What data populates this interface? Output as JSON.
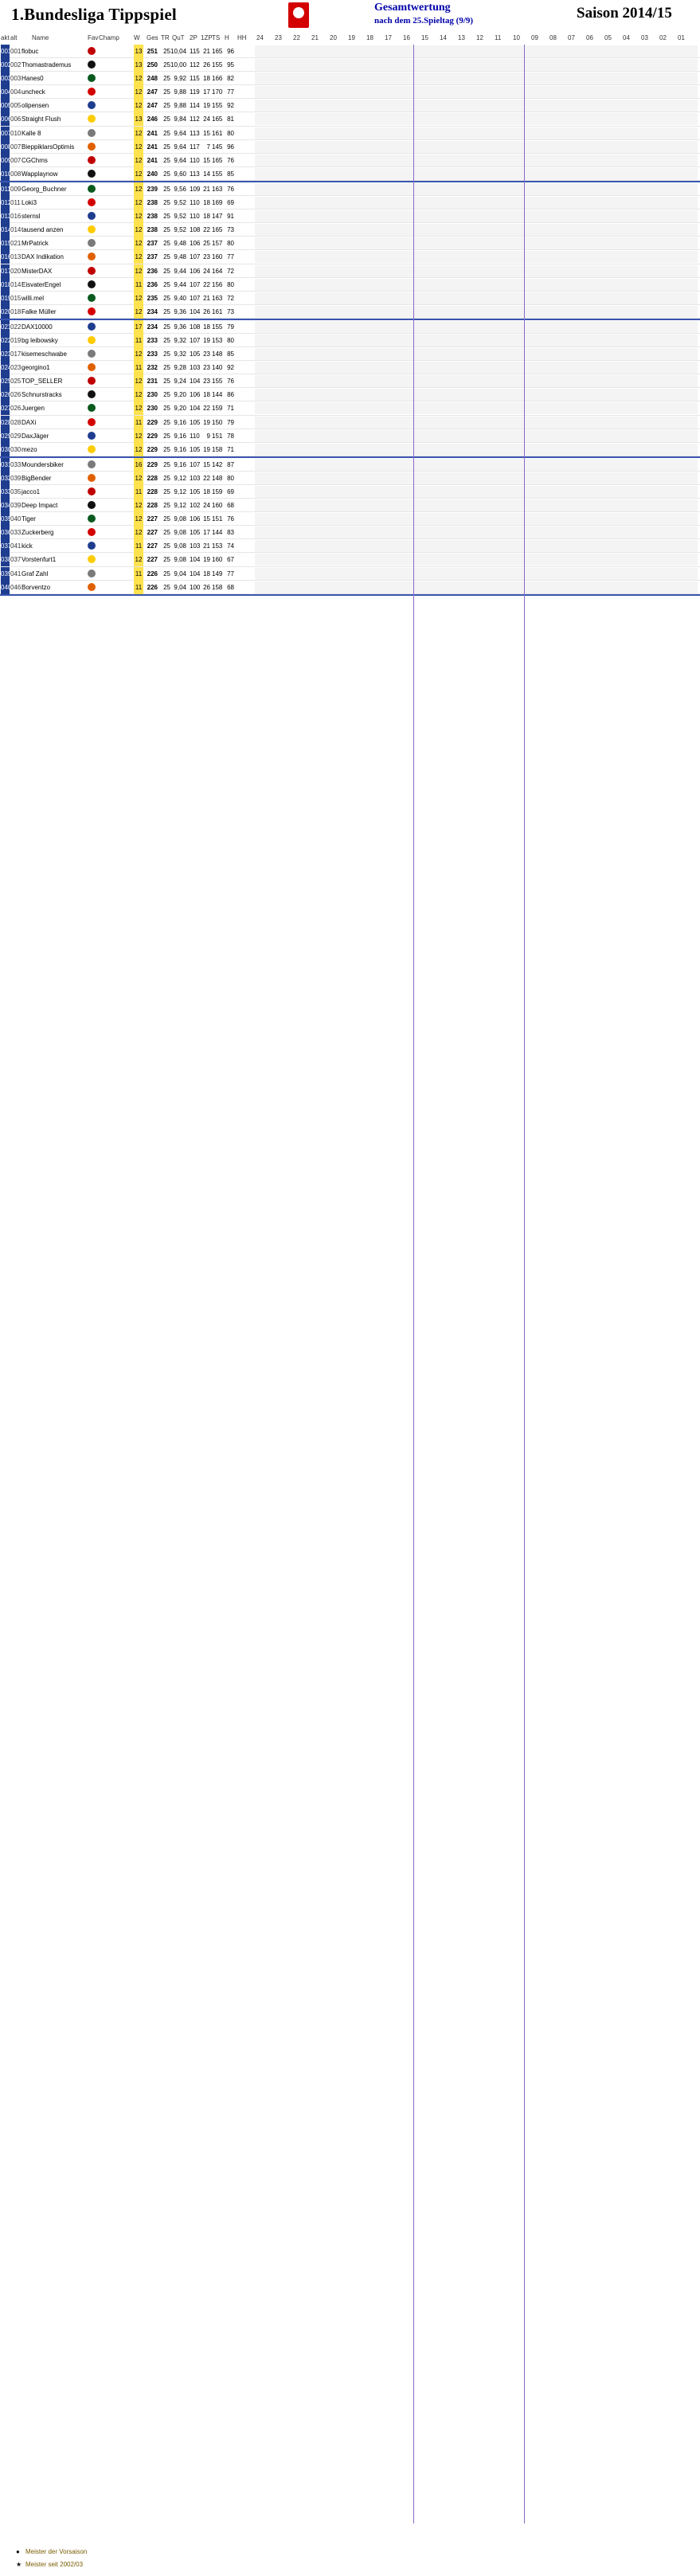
{
  "header": {
    "title": "1.Bundesliga Tippspiel",
    "subtitle": "Gesamtwertung",
    "subsubtitle": "nach dem 25.Spieltag (9/9)",
    "season": "Saison 2014/15"
  },
  "columns": [
    "akt",
    "alt",
    "Name",
    "Fav",
    "Champ",
    "W",
    "Ges",
    "TR",
    "QuT",
    "2P",
    "1ZP",
    "TS",
    "H",
    "HH",
    "24",
    "23",
    "22",
    "21",
    "20",
    "19",
    "18",
    "17",
    "16",
    "15",
    "14",
    "13",
    "12",
    "11",
    "10",
    "09",
    "08",
    "07",
    "06",
    "05",
    "04",
    "03",
    "02",
    "01"
  ],
  "rows": [
    {
      "rank": "001",
      "prev": "001",
      "name": "flobuc",
      "wins": "13",
      "ges": "251",
      "tr": "25",
      "qt": "10,04",
      "p2": "115",
      "p1": "21",
      "ts": "165",
      "h": "96",
      "hh": ""
    },
    {
      "rank": "002",
      "prev": "002",
      "name": "Thomastrademus",
      "wins": "13",
      "ges": "250",
      "tr": "25",
      "qt": "10,00",
      "p2": "112",
      "p1": "26",
      "ts": "155",
      "h": "95",
      "hh": ""
    },
    {
      "rank": "003",
      "prev": "003",
      "name": "Hanes0",
      "wins": "12",
      "ges": "248",
      "tr": "25",
      "qt": "9,92",
      "p2": "115",
      "p1": "18",
      "ts": "166",
      "h": "82",
      "hh": ""
    },
    {
      "rank": "004",
      "prev": "004",
      "name": "uncheck",
      "wins": "12",
      "ges": "247",
      "tr": "25",
      "qt": "9,88",
      "p2": "119",
      "p1": "17",
      "ts": "170",
      "h": "77",
      "hh": ""
    },
    {
      "rank": "005",
      "prev": "005",
      "name": "olipensen",
      "wins": "12",
      "ges": "247",
      "tr": "25",
      "qt": "9,88",
      "p2": "114",
      "p1": "19",
      "ts": "155",
      "h": "92",
      "hh": ""
    },
    {
      "rank": "006",
      "prev": "006",
      "name": "Straight Flush",
      "wins": "13",
      "ges": "246",
      "tr": "25",
      "qt": "9,84",
      "p2": "112",
      "p1": "24",
      "ts": "165",
      "h": "81",
      "hh": ""
    },
    {
      "rank": "007",
      "prev": "010",
      "name": "Kalle 8",
      "wins": "12",
      "ges": "241",
      "tr": "25",
      "qt": "9,64",
      "p2": "113",
      "p1": "15",
      "ts": "161",
      "h": "80",
      "hh": ""
    },
    {
      "rank": "008",
      "prev": "007",
      "name": "BieppiklarsOptimist",
      "wins": "12",
      "ges": "241",
      "tr": "25",
      "qt": "9,64",
      "p2": "117",
      "p1": "7",
      "ts": "145",
      "h": "96",
      "hh": ""
    },
    {
      "rank": "009",
      "prev": "007",
      "name": "CGChms",
      "wins": "12",
      "ges": "241",
      "tr": "25",
      "qt": "9,64",
      "p2": "110",
      "p1": "15",
      "ts": "165",
      "h": "76",
      "hh": ""
    },
    {
      "rank": "010",
      "prev": "008",
      "name": "Wapplaynow",
      "wins": "12",
      "ges": "240",
      "tr": "25",
      "qt": "9,60",
      "p2": "113",
      "p1": "14",
      "ts": "155",
      "h": "85",
      "hh": ""
    },
    {
      "rank": "011",
      "prev": "009",
      "name": "Georg_Buchner",
      "wins": "12",
      "ges": "239",
      "tr": "25",
      "qt": "9,56",
      "p2": "109",
      "p1": "21",
      "ts": "163",
      "h": "76",
      "hh": ""
    },
    {
      "rank": "012",
      "prev": "011",
      "name": "Loki3",
      "wins": "12",
      "ges": "238",
      "tr": "25",
      "qt": "9,52",
      "p2": "110",
      "p1": "18",
      "ts": "169",
      "h": "69",
      "hh": ""
    },
    {
      "rank": "013",
      "prev": "016",
      "name": "sternsl",
      "wins": "12",
      "ges": "238",
      "tr": "25",
      "qt": "9,52",
      "p2": "110",
      "p1": "18",
      "ts": "147",
      "h": "91",
      "hh": ""
    },
    {
      "rank": "014",
      "prev": "014",
      "name": "tausend anzen",
      "wins": "12",
      "ges": "238",
      "tr": "25",
      "qt": "9,52",
      "p2": "108",
      "p1": "22",
      "ts": "165",
      "h": "73",
      "hh": ""
    },
    {
      "rank": "015",
      "prev": "021",
      "name": "MrPatrick",
      "wins": "12",
      "ges": "237",
      "tr": "25",
      "qt": "9,48",
      "p2": "106",
      "p1": "25",
      "ts": "157",
      "h": "80",
      "hh": ""
    },
    {
      "rank": "016",
      "prev": "013",
      "name": "DAX Indikation",
      "wins": "12",
      "ges": "237",
      "tr": "25",
      "qt": "9,48",
      "p2": "107",
      "p1": "23",
      "ts": "160",
      "h": "77",
      "hh": ""
    },
    {
      "rank": "017",
      "prev": "020",
      "name": "MisterDAX",
      "wins": "12",
      "ges": "236",
      "tr": "25",
      "qt": "9,44",
      "p2": "106",
      "p1": "24",
      "ts": "164",
      "h": "72",
      "hh": ""
    },
    {
      "rank": "018",
      "prev": "014",
      "name": "EisvaterEngel",
      "wins": "11",
      "ges": "236",
      "tr": "25",
      "qt": "9,44",
      "p2": "107",
      "p1": "22",
      "ts": "156",
      "h": "80",
      "hh": ""
    },
    {
      "rank": "019",
      "prev": "015",
      "name": "willi.mel",
      "wins": "12",
      "ges": "235",
      "tr": "25",
      "qt": "9,40",
      "p2": "107",
      "p1": "21",
      "ts": "163",
      "h": "72",
      "hh": ""
    },
    {
      "rank": "020",
      "prev": "018",
      "name": "Falke Müller",
      "wins": "12",
      "ges": "234",
      "tr": "25",
      "qt": "9,36",
      "p2": "104",
      "p1": "26",
      "ts": "161",
      "h": "73",
      "hh": ""
    },
    {
      "rank": "021",
      "prev": "022",
      "name": "DAX10000",
      "wins": "17",
      "ges": "234",
      "tr": "25",
      "qt": "9,36",
      "p2": "108",
      "p1": "18",
      "ts": "155",
      "h": "79",
      "hh": ""
    },
    {
      "rank": "022",
      "prev": "019",
      "name": "bg leibowsky",
      "wins": "11",
      "ges": "233",
      "tr": "25",
      "qt": "9,32",
      "p2": "107",
      "p1": "19",
      "ts": "153",
      "h": "80",
      "hh": ""
    },
    {
      "rank": "023",
      "prev": "017",
      "name": "kisemeschwabe",
      "wins": "12",
      "ges": "233",
      "tr": "25",
      "qt": "9,32",
      "p2": "105",
      "p1": "23",
      "ts": "148",
      "h": "85",
      "hh": ""
    },
    {
      "rank": "024",
      "prev": "023",
      "name": "georgino1",
      "wins": "11",
      "ges": "232",
      "tr": "25",
      "qt": "9,28",
      "p2": "103",
      "p1": "23",
      "ts": "140",
      "h": "92",
      "hh": ""
    },
    {
      "rank": "025",
      "prev": "025",
      "name": "TOP_SELLER",
      "wins": "12",
      "ges": "231",
      "tr": "25",
      "qt": "9,24",
      "p2": "104",
      "p1": "23",
      "ts": "155",
      "h": "76",
      "hh": ""
    },
    {
      "rank": "026",
      "prev": "026",
      "name": "Schnurstracks",
      "wins": "12",
      "ges": "230",
      "tr": "25",
      "qt": "9,20",
      "p2": "106",
      "p1": "18",
      "ts": "144",
      "h": "86",
      "hh": ""
    },
    {
      "rank": "027",
      "prev": "026",
      "name": "Juergen",
      "wins": "12",
      "ges": "230",
      "tr": "25",
      "qt": "9,20",
      "p2": "104",
      "p1": "22",
      "ts": "159",
      "h": "71",
      "hh": ""
    },
    {
      "rank": "028",
      "prev": "028",
      "name": "DAXi",
      "wins": "11",
      "ges": "229",
      "tr": "25",
      "qt": "9,16",
      "p2": "105",
      "p1": "19",
      "ts": "150",
      "h": "79",
      "hh": ""
    },
    {
      "rank": "029",
      "prev": "029",
      "name": "DaxJäger",
      "wins": "12",
      "ges": "229",
      "tr": "25",
      "qt": "9,16",
      "p2": "110",
      "p1": "9",
      "ts": "151",
      "h": "78",
      "hh": ""
    },
    {
      "rank": "030",
      "prev": "030",
      "name": "mezo",
      "wins": "12",
      "ges": "229",
      "tr": "25",
      "qt": "9,16",
      "p2": "105",
      "p1": "19",
      "ts": "158",
      "h": "71",
      "hh": ""
    },
    {
      "rank": "031",
      "prev": "033",
      "name": "Moundersbiker",
      "wins": "16",
      "ges": "229",
      "tr": "25",
      "qt": "9,16",
      "p2": "107",
      "p1": "15",
      "ts": "142",
      "h": "87",
      "hh": ""
    },
    {
      "rank": "032",
      "prev": "039",
      "name": "BigBender",
      "wins": "12",
      "ges": "228",
      "tr": "25",
      "qt": "9,12",
      "p2": "103",
      "p1": "22",
      "ts": "148",
      "h": "80",
      "hh": ""
    },
    {
      "rank": "033",
      "prev": "035",
      "name": "jacco1",
      "wins": "11",
      "ges": "228",
      "tr": "25",
      "qt": "9,12",
      "p2": "105",
      "p1": "18",
      "ts": "159",
      "h": "69",
      "hh": ""
    },
    {
      "rank": "034",
      "prev": "039",
      "name": "Deep Impact",
      "wins": "12",
      "ges": "228",
      "tr": "25",
      "qt": "9,12",
      "p2": "102",
      "p1": "24",
      "ts": "160",
      "h": "68",
      "hh": ""
    },
    {
      "rank": "035",
      "prev": "040",
      "name": "Tiger",
      "wins": "12",
      "ges": "227",
      "tr": "25",
      "qt": "9,08",
      "p2": "106",
      "p1": "15",
      "ts": "151",
      "h": "76",
      "hh": ""
    },
    {
      "rank": "036",
      "prev": "033",
      "name": "Zuckerberg",
      "wins": "12",
      "ges": "227",
      "tr": "25",
      "qt": "9,08",
      "p2": "105",
      "p1": "17",
      "ts": "144",
      "h": "83",
      "hh": ""
    },
    {
      "rank": "037",
      "prev": "041",
      "name": "kick",
      "wins": "11",
      "ges": "227",
      "tr": "25",
      "qt": "9,08",
      "p2": "103",
      "p1": "21",
      "ts": "153",
      "h": "74",
      "hh": ""
    },
    {
      "rank": "038",
      "prev": "037",
      "name": "Vorstenfurt1",
      "wins": "12",
      "ges": "227",
      "tr": "25",
      "qt": "9,08",
      "p2": "104",
      "p1": "19",
      "ts": "160",
      "h": "67",
      "hh": ""
    },
    {
      "rank": "039",
      "prev": "041",
      "name": "Graf Zahl",
      "wins": "11",
      "ges": "226",
      "tr": "25",
      "qt": "9,04",
      "p2": "104",
      "p1": "18",
      "ts": "149",
      "h": "77",
      "hh": ""
    },
    {
      "rank": "040",
      "prev": "046",
      "name": "Borventzo",
      "wins": "11",
      "ges": "226",
      "tr": "25",
      "qt": "9,04",
      "p2": "100",
      "p1": "26",
      "ts": "158",
      "h": "68",
      "hh": ""
    }
  ],
  "legend": {
    "champion": "Meister der Vorsaison",
    "star": "Meister seit 2002/03"
  },
  "colors": {
    "rank_bg": "#1e3d8f",
    "win_bg": "#ffe24d",
    "separator": "#3a55b0",
    "highlight_green": "#c6ef6f",
    "highlight_red": "#f08a8a",
    "empty_blue": "#bfe1f2",
    "empty_beige": "#e8dcc4"
  }
}
